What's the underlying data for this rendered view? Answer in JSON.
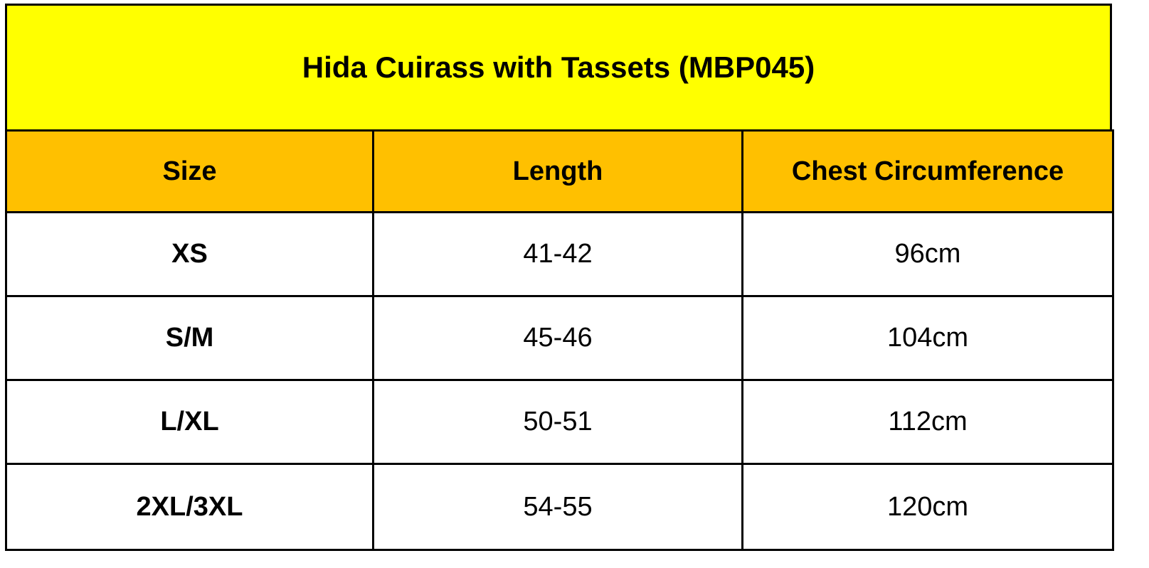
{
  "header": {
    "title": "Hida Cuirass with Tassets (MBP045)"
  },
  "table": {
    "columns": [
      "Size",
      "Length",
      "Chest Circumference"
    ],
    "rows": [
      [
        "XS",
        "41-42",
        "96cm"
      ],
      [
        "S/M",
        "45-46",
        "104cm"
      ],
      [
        "L/XL",
        "50-51",
        "112cm"
      ],
      [
        "2XL/3XL",
        "54-55",
        "120cm"
      ]
    ]
  }
}
